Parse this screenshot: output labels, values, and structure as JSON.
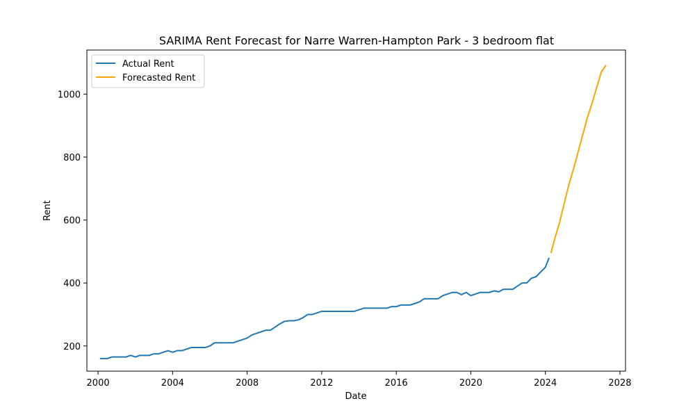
{
  "chart_data": {
    "type": "line",
    "title": "SARIMA Rent Forecast for Narre Warren-Hampton Park - 3 bedroom flat",
    "xlabel": "Date",
    "ylabel": "Rent",
    "xlim": [
      1999.4,
      2028.3
    ],
    "ylim": [
      120,
      1140
    ],
    "x_ticks": [
      2000,
      2004,
      2008,
      2012,
      2016,
      2020,
      2024,
      2028
    ],
    "y_ticks": [
      200,
      400,
      600,
      800,
      1000
    ],
    "grid": false,
    "legend_position": "upper left",
    "series": [
      {
        "name": "Actual Rent",
        "color": "#1f77b4",
        "points": [
          [
            2000.1,
            160
          ],
          [
            2000.5,
            160
          ],
          [
            2000.75,
            165
          ],
          [
            2001.0,
            165
          ],
          [
            2001.25,
            165
          ],
          [
            2001.5,
            165
          ],
          [
            2001.75,
            170
          ],
          [
            2002.0,
            165
          ],
          [
            2002.25,
            170
          ],
          [
            2002.5,
            170
          ],
          [
            2002.75,
            170
          ],
          [
            2003.0,
            175
          ],
          [
            2003.25,
            175
          ],
          [
            2003.5,
            180
          ],
          [
            2003.75,
            185
          ],
          [
            2004.0,
            180
          ],
          [
            2004.25,
            185
          ],
          [
            2004.5,
            185
          ],
          [
            2004.75,
            190
          ],
          [
            2005.0,
            195
          ],
          [
            2005.25,
            195
          ],
          [
            2005.5,
            195
          ],
          [
            2005.75,
            195
          ],
          [
            2006.0,
            200
          ],
          [
            2006.25,
            210
          ],
          [
            2006.5,
            210
          ],
          [
            2006.75,
            210
          ],
          [
            2007.0,
            210
          ],
          [
            2007.25,
            210
          ],
          [
            2007.5,
            215
          ],
          [
            2007.75,
            220
          ],
          [
            2008.0,
            225
          ],
          [
            2008.25,
            235
          ],
          [
            2008.5,
            240
          ],
          [
            2008.75,
            245
          ],
          [
            2009.0,
            250
          ],
          [
            2009.25,
            250
          ],
          [
            2009.5,
            260
          ],
          [
            2009.75,
            270
          ],
          [
            2010.0,
            278
          ],
          [
            2010.25,
            280
          ],
          [
            2010.5,
            280
          ],
          [
            2010.75,
            283
          ],
          [
            2011.0,
            290
          ],
          [
            2011.25,
            300
          ],
          [
            2011.5,
            300
          ],
          [
            2011.75,
            305
          ],
          [
            2012.0,
            310
          ],
          [
            2012.5,
            310
          ],
          [
            2013.0,
            310
          ],
          [
            2013.75,
            310
          ],
          [
            2014.0,
            315
          ],
          [
            2014.25,
            320
          ],
          [
            2014.75,
            320
          ],
          [
            2015.25,
            320
          ],
          [
            2015.5,
            320
          ],
          [
            2015.75,
            325
          ],
          [
            2016.0,
            325
          ],
          [
            2016.25,
            330
          ],
          [
            2016.5,
            330
          ],
          [
            2016.75,
            330
          ],
          [
            2017.0,
            335
          ],
          [
            2017.25,
            340
          ],
          [
            2017.5,
            350
          ],
          [
            2017.75,
            350
          ],
          [
            2018.0,
            350
          ],
          [
            2018.25,
            350
          ],
          [
            2018.5,
            360
          ],
          [
            2018.75,
            365
          ],
          [
            2019.0,
            370
          ],
          [
            2019.25,
            370
          ],
          [
            2019.5,
            363
          ],
          [
            2019.75,
            370
          ],
          [
            2020.0,
            360
          ],
          [
            2020.25,
            365
          ],
          [
            2020.5,
            370
          ],
          [
            2020.75,
            370
          ],
          [
            2021.0,
            370
          ],
          [
            2021.25,
            375
          ],
          [
            2021.5,
            372
          ],
          [
            2021.75,
            380
          ],
          [
            2022.0,
            380
          ],
          [
            2022.25,
            380
          ],
          [
            2022.5,
            390
          ],
          [
            2022.75,
            400
          ],
          [
            2023.0,
            400
          ],
          [
            2023.25,
            415
          ],
          [
            2023.5,
            420
          ],
          [
            2023.75,
            435
          ],
          [
            2024.0,
            450
          ],
          [
            2024.2,
            480
          ]
        ]
      },
      {
        "name": "Forecasted Rent",
        "color": "#ffa500",
        "points": [
          [
            2024.3,
            495
          ],
          [
            2024.5,
            540
          ],
          [
            2024.75,
            590
          ],
          [
            2025.0,
            650
          ],
          [
            2025.25,
            710
          ],
          [
            2025.5,
            760
          ],
          [
            2025.75,
            815
          ],
          [
            2026.0,
            870
          ],
          [
            2026.25,
            925
          ],
          [
            2026.5,
            970
          ],
          [
            2026.75,
            1020
          ],
          [
            2027.0,
            1070
          ],
          [
            2027.25,
            1092
          ]
        ]
      }
    ]
  }
}
